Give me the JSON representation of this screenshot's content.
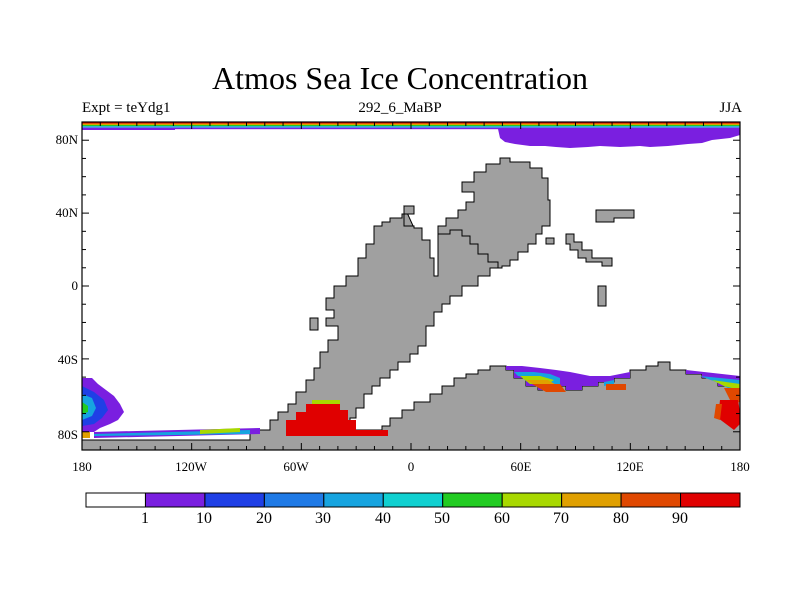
{
  "figure": {
    "title": "Atmos Sea Ice Concentration",
    "left_label": "Expt = teYdg1",
    "center_label": "292_6_MaBP",
    "right_label": "JJA"
  },
  "axes": {
    "y_ticks": [
      "80N",
      "40N",
      "0",
      "40S",
      "80S"
    ],
    "x_ticks": [
      "180",
      "120W",
      "60W",
      "0",
      "60E",
      "120E",
      "180"
    ]
  },
  "legend": {
    "labels": [
      "1",
      "10",
      "20",
      "30",
      "40",
      "50",
      "60",
      "70",
      "80",
      "90"
    ],
    "colors": [
      "#ffffff",
      "#7a1fe0",
      "#1f3fe6",
      "#1f7ae6",
      "#16a4e0",
      "#10d0d0",
      "#22cc22",
      "#a8d800",
      "#e0a000",
      "#e04800",
      "#e00000"
    ]
  },
  "colors": {
    "land": "#a0a0a0",
    "ocean": "#ffffff",
    "arctic_ice": "#7a1fe0"
  }
}
